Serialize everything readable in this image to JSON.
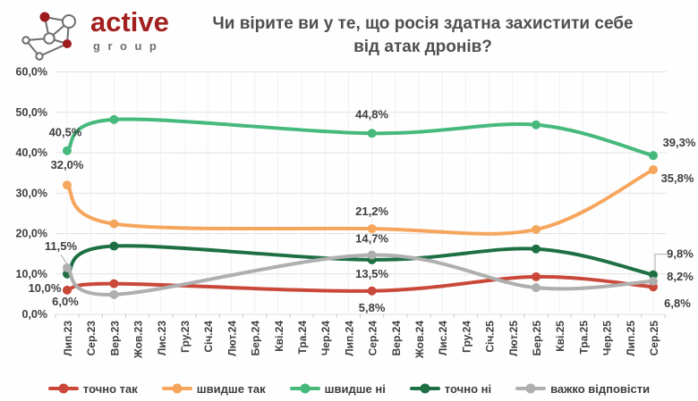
{
  "logo": {
    "brand": "active",
    "sub": "group",
    "brand_color": "#A32020",
    "sub_color": "#6E6F72",
    "node_fill_color": "#9B1B1E",
    "edge_color": "#6D6E71"
  },
  "header": {
    "title": "Чи вірите ви у те, що росія здатна захистити себе від атак дронів?",
    "title_color": "#4F4F4F"
  },
  "chart_data": {
    "type": "line",
    "title": "Чи вірите ви у те, що росія здатна захистити себе від атак дронів?",
    "xlabel": "",
    "ylabel": "",
    "ylim": [
      0,
      60
    ],
    "yticks": [
      "0,0%",
      "10,0%",
      "20,0%",
      "30,0%",
      "40,0%",
      "50,0%",
      "60,0%"
    ],
    "grid": true,
    "legend_position": "bottom",
    "smoothed_lines": true,
    "categories": [
      "Лип.23",
      "Сер.23",
      "Вер.23",
      "Жов.23",
      "Лис.23",
      "Гру.23",
      "Січ.24",
      "Лют.24",
      "Бер.24",
      "Кві.24",
      "Тра.24",
      "Чер.24",
      "Лип.24",
      "Сер.24",
      "Вер.24",
      "Жов.24",
      "Лис.24",
      "Гру.24",
      "Січ.25",
      "Лют.25",
      "Бер.25",
      "Кві.25",
      "Тра.25",
      "Чер.25",
      "Лип.25",
      "Сер.25"
    ],
    "survey_wave_category_indices": [
      0,
      2,
      13,
      20,
      25
    ],
    "survey_wave_months": [
      "Лип.23",
      "Вер.23",
      "Сер.24",
      "Бер.25",
      "Сер.25"
    ],
    "series": [
      {
        "name": "точно так",
        "color": "#C9483A",
        "values": [
          6.0,
          7.6,
          5.8,
          9.3,
          6.8
        ],
        "point_labels": [
          "6,0%",
          null,
          "5,8%",
          null,
          "6,8%"
        ],
        "label_offsets": [
          [
            -2,
            13
          ],
          null,
          [
            0,
            19
          ],
          null,
          [
            27,
            19
          ]
        ],
        "label_leaders": [
          null,
          null,
          null,
          null,
          null
        ]
      },
      {
        "name": "швидше так",
        "color": "#F6A55C",
        "values": [
          32.0,
          22.4,
          21.2,
          21.0,
          35.8
        ],
        "point_labels": [
          "32,0%",
          null,
          "21,2%",
          null,
          "35,8%"
        ],
        "label_offsets": [
          [
            0,
            -22
          ],
          null,
          [
            0,
            -19
          ],
          null,
          [
            27,
            10
          ]
        ],
        "label_leaders": [
          null,
          null,
          null,
          null,
          null
        ]
      },
      {
        "name": "швидше ні",
        "color": "#46B97D",
        "values": [
          40.5,
          48.2,
          44.8,
          46.9,
          39.3
        ],
        "point_labels": [
          "40,5%",
          null,
          "44,8%",
          null,
          "39,3%"
        ],
        "label_offsets": [
          [
            -2,
            -20
          ],
          null,
          [
            0,
            -21
          ],
          null,
          [
            29,
            -14
          ]
        ],
        "label_leaders": [
          null,
          null,
          null,
          null,
          null
        ]
      },
      {
        "name": "точно ні",
        "color": "#1E7044",
        "values": [
          10.0,
          16.9,
          13.5,
          16.2,
          9.8
        ],
        "point_labels": [
          "10,0%",
          null,
          "13,5%",
          null,
          "9,8%"
        ],
        "label_offsets": [
          [
            -25,
            16
          ],
          null,
          [
            0,
            16
          ],
          null,
          [
            30,
            -23
          ]
        ],
        "label_leaders": [
          null,
          null,
          null,
          null,
          "elbow"
        ]
      },
      {
        "name": "важко відповісти",
        "color": "#AFAFAF",
        "values": [
          11.5,
          4.9,
          14.7,
          6.6,
          8.2
        ],
        "point_labels": [
          "11,5%",
          null,
          "14,7%",
          null,
          "8,2%"
        ],
        "label_offsets": [
          [
            -7,
            -24
          ],
          null,
          [
            0,
            -18
          ],
          null,
          [
            30,
            -5
          ]
        ],
        "label_leaders": [
          "line",
          null,
          null,
          null,
          null
        ]
      }
    ],
    "axis_text_color": "#3F3F3F",
    "data_label_color": "#3E3E3E",
    "gridline_color": "#E2E2E2"
  }
}
